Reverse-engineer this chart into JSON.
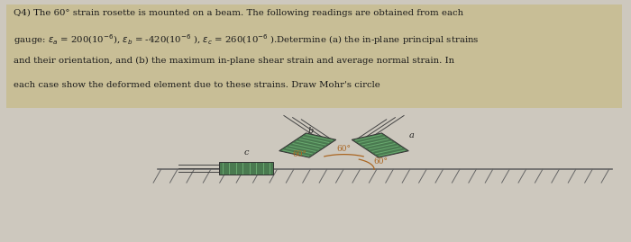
{
  "bg_color": "#cdc8be",
  "text_bg_color": "#c8be96",
  "text_color": "#1a1a1a",
  "gauge_green": "#4a7a50",
  "gauge_green_dark": "#3a6040",
  "gauge_stripe": "#6aaa70",
  "wire_color": "#444444",
  "beam_color": "#666666",
  "arc_color": "#aa6622",
  "angle_text_color": "#aa6622",
  "label_color": "#222222",
  "ox": 0.545,
  "oy": 0.3,
  "text_lines": [
    "Q4) The 60° strain rosette is mounted on a beam. The following readings are obtained from each",
    "gauge: εa = 200(10⁻⁶), εb = -420(10⁻⁶ ), εc = 260(10⁻⁶ ).Determine (a) the in-plane principal strains",
    "and their orientation, and (b) the maximum in-plane shear strain and average normal strain. In",
    "each case show the deformed element due to these strains. Draw Mohr’s circle"
  ],
  "angle_label": "60°",
  "label_a": "a",
  "label_b": "b",
  "label_c": "c"
}
